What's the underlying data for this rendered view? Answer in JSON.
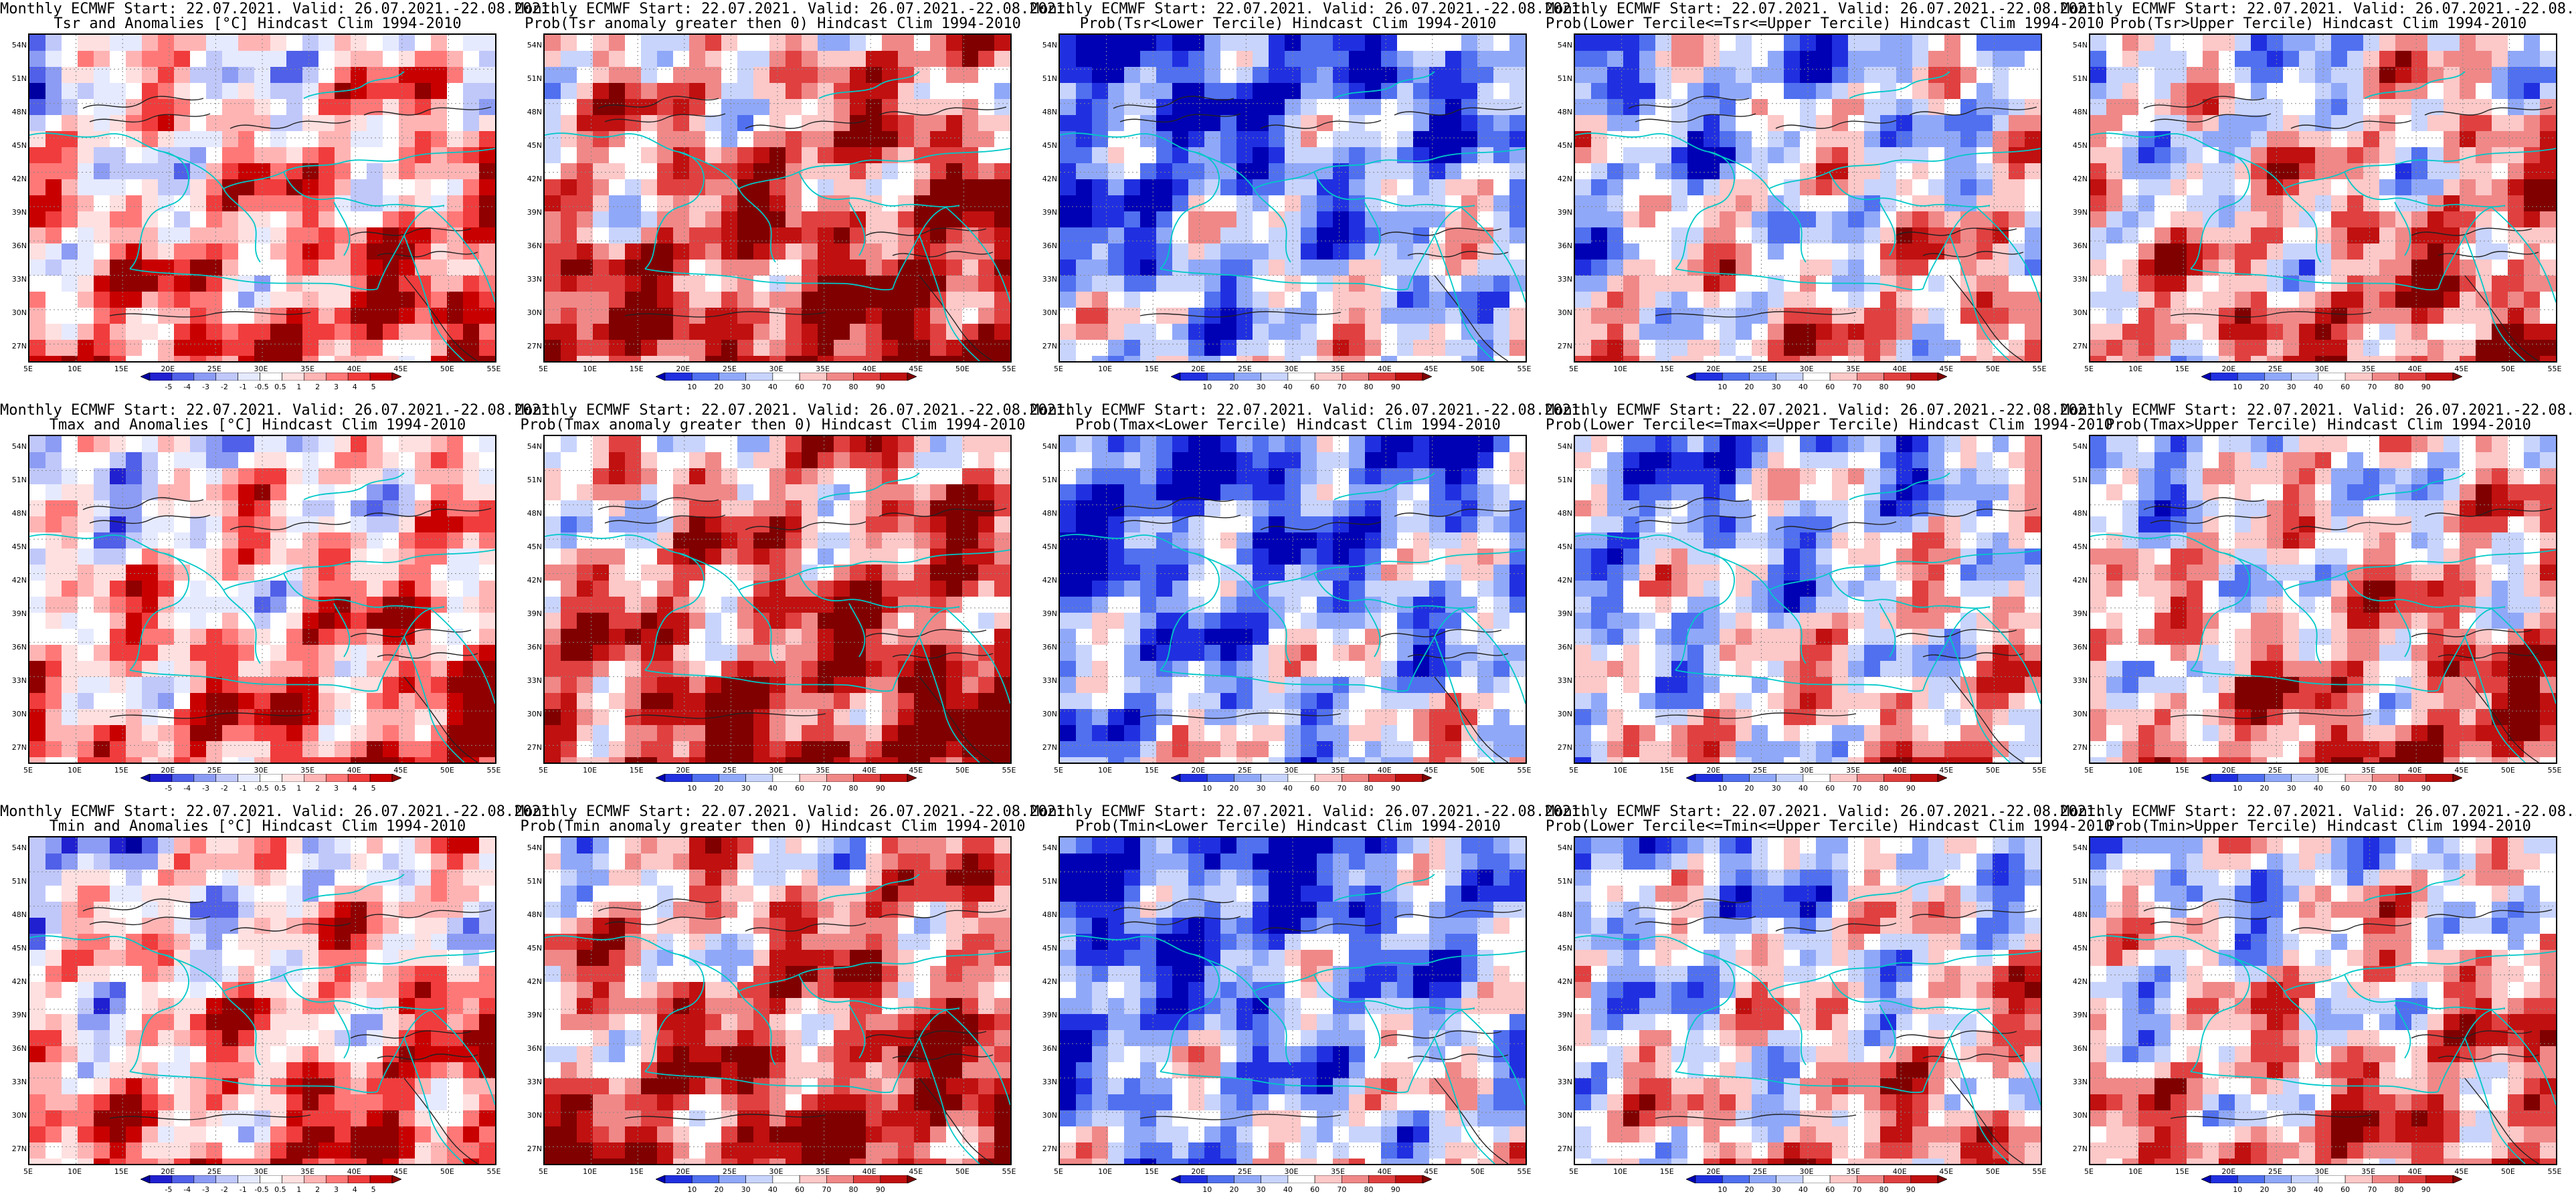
{
  "header": "Monthly ECMWF Start: 22.07.2021. Valid: 26.07.2021.-22.08.2021.",
  "lat_ticks": [
    "54N",
    "51N",
    "48N",
    "45N",
    "42N",
    "39N",
    "36N",
    "33N",
    "30N",
    "27N"
  ],
  "lon_ticks": [
    "5E",
    "10E",
    "15E",
    "20E",
    "25E",
    "30E",
    "35E",
    "40E",
    "45E",
    "50E",
    "55E"
  ],
  "anomaly_colorbar_labels": [
    "-5",
    "-4",
    "-3",
    "-2",
    "-1",
    "-0.5",
    "0.5",
    "1",
    "2",
    "3",
    "4",
    "5"
  ],
  "prob_colorbar_labels": [
    "10",
    "20",
    "30",
    "40",
    "60",
    "70",
    "80",
    "90"
  ],
  "colors": {
    "coast": "#00c8c8",
    "contour": "#222222",
    "anom_scale": [
      "#0000a0",
      "#2020d0",
      "#5060e8",
      "#8c9cf4",
      "#c0c8fa",
      "#e6eaff",
      "#ffffff",
      "#ffe0e0",
      "#ffb4b4",
      "#ff7878",
      "#f03c3c",
      "#c80000",
      "#900000"
    ],
    "prob_scale": [
      "#0000b4",
      "#2030e0",
      "#5070f0",
      "#90a8f8",
      "#c8d4fc",
      "#ffffff",
      "#fcc8c8",
      "#f08888",
      "#e04040",
      "#c01010",
      "#800000"
    ]
  },
  "panels": [
    {
      "id": "tsr-anom",
      "line2": "Tsr and Anomalies [°C] Hindcast Clim 1994-2010",
      "scale": "anom",
      "bias": 0.15,
      "seed": 11
    },
    {
      "id": "tsr-prob-pos",
      "line2": "Prob(Tsr anomaly greater then 0) Hindcast Clim 1994-2010",
      "scale": "prob",
      "bias": 0.35,
      "seed": 12
    },
    {
      "id": "tsr-prob-lower",
      "line2": "Prob(Tsr<Lower Tercile) Hindcast Clim 1994-2010",
      "scale": "prob",
      "bias": -0.55,
      "seed": 13
    },
    {
      "id": "tsr-prob-middle",
      "line2": "Prob(Lower Tercile<=Tsr<=Upper Tercile) Hindcast Clim 1994-2010",
      "scale": "prob",
      "bias": -0.2,
      "seed": 14
    },
    {
      "id": "tsr-prob-upper",
      "line2": "Prob(Tsr>Upper Tercile) Hindcast Clim 1994-2010",
      "scale": "prob",
      "bias": 0.05,
      "seed": 15
    },
    {
      "id": "tmax-anom",
      "line2": "Tmax and Anomalies [°C] Hindcast Clim 1994-2010",
      "scale": "anom",
      "bias": 0.12,
      "seed": 21
    },
    {
      "id": "tmax-prob-pos",
      "line2": "Prob(Tmax anomaly greater then 0) Hindcast Clim 1994-2010",
      "scale": "prob",
      "bias": 0.35,
      "seed": 22
    },
    {
      "id": "tmax-prob-lower",
      "line2": "Prob(Tmax<Lower Tercile) Hindcast Clim 1994-2010",
      "scale": "prob",
      "bias": -0.55,
      "seed": 23
    },
    {
      "id": "tmax-prob-middle",
      "line2": "Prob(Lower Tercile<=Tmax<=Upper Tercile) Hindcast Clim 1994-2010",
      "scale": "prob",
      "bias": -0.25,
      "seed": 24
    },
    {
      "id": "tmax-prob-upper",
      "line2": "Prob(Tmax>Upper Tercile) Hindcast Clim 1994-2010",
      "scale": "prob",
      "bias": 0.05,
      "seed": 25
    },
    {
      "id": "tmin-anom",
      "line2": "Tmin and Anomalies [°C] Hindcast Clim 1994-2010",
      "scale": "anom",
      "bias": 0.1,
      "seed": 31
    },
    {
      "id": "tmin-prob-pos",
      "line2": "Prob(Tmin anomaly greater then 0) Hindcast Clim 1994-2010",
      "scale": "prob",
      "bias": 0.3,
      "seed": 32
    },
    {
      "id": "tmin-prob-lower",
      "line2": "Prob(Tmin<Lower Tercile) Hindcast Clim 1994-2010",
      "scale": "prob",
      "bias": -0.55,
      "seed": 33
    },
    {
      "id": "tmin-prob-middle",
      "line2": "Prob(Lower Tercile<=Tmin<=Upper Tercile) Hindcast Clim 1994-2010",
      "scale": "prob",
      "bias": -0.15,
      "seed": 34
    },
    {
      "id": "tmin-prob-upper",
      "line2": "Prob(Tmin>Upper Tercile) Hindcast Clim 1994-2010",
      "scale": "prob",
      "bias": 0.0,
      "seed": 35
    }
  ]
}
